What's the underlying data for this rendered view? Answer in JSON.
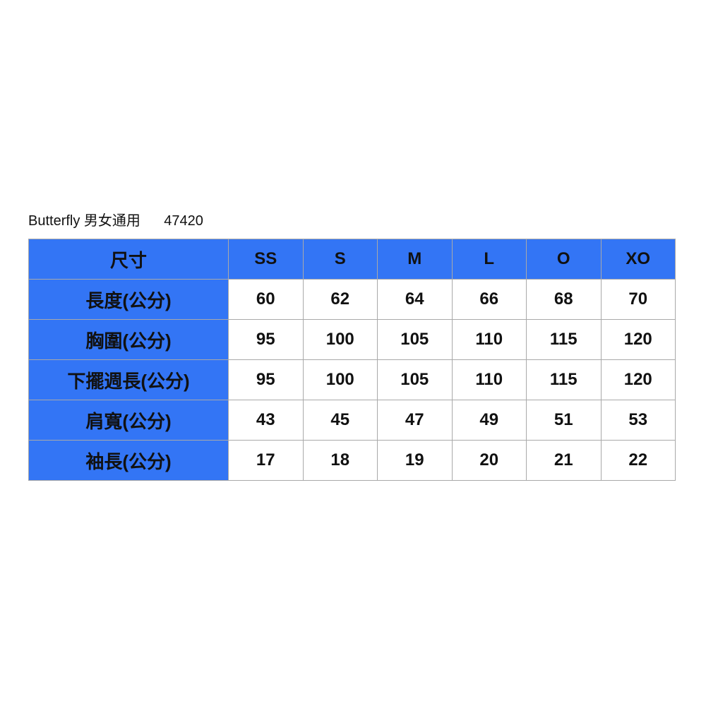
{
  "title": {
    "brand": "Butterfly",
    "category": "男女通用",
    "code": "47420"
  },
  "colors": {
    "header_bg": "#3375f5",
    "border": "#a9a9a9"
  },
  "table": {
    "header_label": "尺寸",
    "sizes": [
      "SS",
      "S",
      "M",
      "L",
      "O",
      "XO"
    ],
    "rows": [
      {
        "label": "長度(公分)",
        "values": [
          "60",
          "62",
          "64",
          "66",
          "68",
          "70"
        ]
      },
      {
        "label": "胸圍(公分)",
        "values": [
          "95",
          "100",
          "105",
          "110",
          "115",
          "120"
        ]
      },
      {
        "label": "下擺週長(公分)",
        "values": [
          "95",
          "100",
          "105",
          "110",
          "115",
          "120"
        ]
      },
      {
        "label": "肩寬(公分)",
        "values": [
          "43",
          "45",
          "47",
          "49",
          "51",
          "53"
        ]
      },
      {
        "label": "袖長(公分)",
        "values": [
          "17",
          "18",
          "19",
          "20",
          "21",
          "22"
        ]
      }
    ]
  }
}
